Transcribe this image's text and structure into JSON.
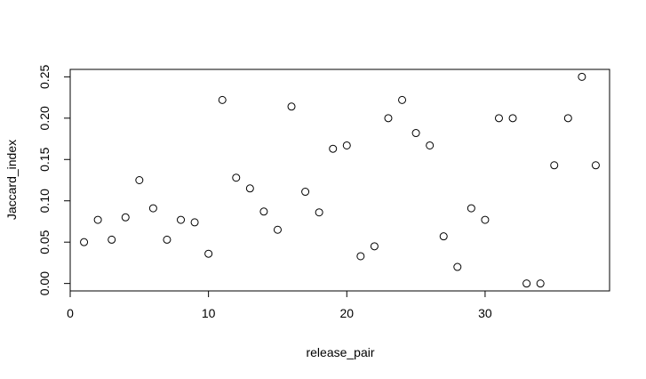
{
  "chart_data": {
    "type": "scatter",
    "title": "",
    "xlabel": "release_pair",
    "ylabel": "Jaccard_index",
    "xlim": [
      0,
      39
    ],
    "ylim": [
      -0.009,
      0.259
    ],
    "grid": false,
    "x_ticks": [
      0,
      10,
      20,
      30
    ],
    "y_ticks": [
      0.0,
      0.05,
      0.1,
      0.15,
      0.2,
      0.25
    ],
    "x_tick_labels": [
      "0",
      "10",
      "20",
      "30"
    ],
    "y_tick_labels": [
      "0.00",
      "0.05",
      "0.10",
      "0.15",
      "0.20",
      "0.25"
    ],
    "points": [
      {
        "x": 1,
        "y": 0.05
      },
      {
        "x": 2,
        "y": 0.077
      },
      {
        "x": 3,
        "y": 0.053
      },
      {
        "x": 4,
        "y": 0.08
      },
      {
        "x": 5,
        "y": 0.125
      },
      {
        "x": 6,
        "y": 0.091
      },
      {
        "x": 7,
        "y": 0.053
      },
      {
        "x": 8,
        "y": 0.077
      },
      {
        "x": 9,
        "y": 0.074
      },
      {
        "x": 10,
        "y": 0.036
      },
      {
        "x": 11,
        "y": 0.222
      },
      {
        "x": 12,
        "y": 0.128
      },
      {
        "x": 13,
        "y": 0.115
      },
      {
        "x": 14,
        "y": 0.087
      },
      {
        "x": 15,
        "y": 0.065
      },
      {
        "x": 16,
        "y": 0.214
      },
      {
        "x": 17,
        "y": 0.111
      },
      {
        "x": 18,
        "y": 0.086
      },
      {
        "x": 19,
        "y": 0.163
      },
      {
        "x": 20,
        "y": 0.167
      },
      {
        "x": 21,
        "y": 0.033
      },
      {
        "x": 22,
        "y": 0.045
      },
      {
        "x": 23,
        "y": 0.2
      },
      {
        "x": 24,
        "y": 0.222
      },
      {
        "x": 25,
        "y": 0.182
      },
      {
        "x": 26,
        "y": 0.167
      },
      {
        "x": 27,
        "y": 0.057
      },
      {
        "x": 28,
        "y": 0.02
      },
      {
        "x": 29,
        "y": 0.091
      },
      {
        "x": 30,
        "y": 0.077
      },
      {
        "x": 31,
        "y": 0.2
      },
      {
        "x": 32,
        "y": 0.2
      },
      {
        "x": 33,
        "y": 0.0
      },
      {
        "x": 34,
        "y": 0.0
      },
      {
        "x": 35,
        "y": 0.143
      },
      {
        "x": 36,
        "y": 0.2
      },
      {
        "x": 37,
        "y": 0.25
      },
      {
        "x": 38,
        "y": 0.143
      }
    ]
  }
}
